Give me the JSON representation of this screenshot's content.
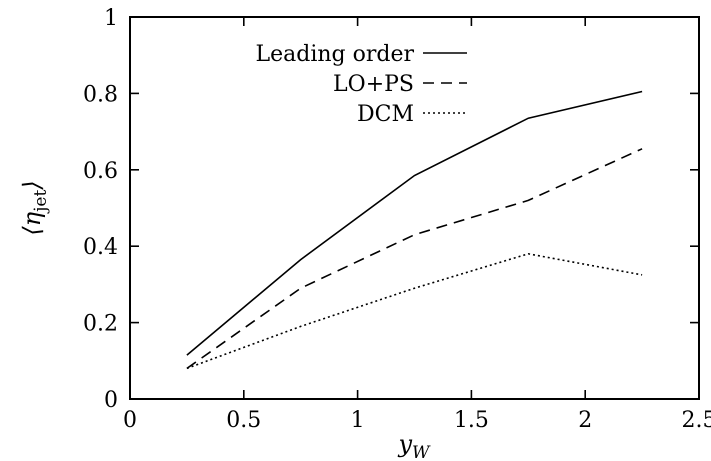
{
  "chart_data": {
    "type": "line",
    "title": "",
    "xlabel": "y_W",
    "ylabel": "⟨η_jet⟩",
    "xlim": [
      0,
      2.5
    ],
    "ylim": [
      0,
      1
    ],
    "x_ticks": [
      0,
      0.5,
      1,
      1.5,
      2,
      2.5
    ],
    "x_tick_labels": [
      "0",
      "0.5",
      "1",
      "1.5",
      "2",
      "2.5"
    ],
    "y_ticks": [
      0,
      0.2,
      0.4,
      0.6,
      0.8,
      1
    ],
    "y_tick_labels": [
      "0",
      "0.2",
      "0.4",
      "0.6",
      "0.8",
      "1"
    ],
    "grid": false,
    "legend_position": "top-left",
    "x": [
      0.25,
      0.75,
      1.25,
      1.75,
      2.25
    ],
    "series": [
      {
        "name": "Leading order",
        "style": "solid",
        "values": [
          0.115,
          0.365,
          0.585,
          0.735,
          0.805
        ]
      },
      {
        "name": "LO+PS",
        "style": "dashed",
        "values": [
          0.08,
          0.29,
          0.43,
          0.52,
          0.655
        ]
      },
      {
        "name": "DCM",
        "style": "dotted",
        "values": [
          0.08,
          0.19,
          0.29,
          0.38,
          0.325
        ]
      }
    ],
    "colors": {
      "line": "#000000",
      "background": "#ffffff"
    }
  }
}
